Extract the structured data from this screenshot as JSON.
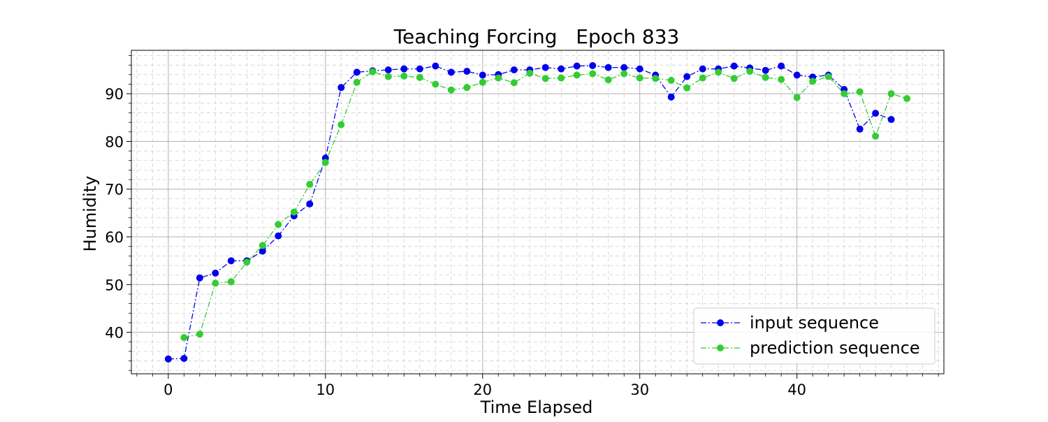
{
  "chart_data": {
    "type": "line",
    "title": "Teaching Forcing   Epoch 833",
    "xlabel": "Time Elapsed",
    "ylabel": "Humidity",
    "xlim": [
      -2.35,
      49.35
    ],
    "ylim": [
      31.3,
      99.1
    ],
    "xticks": [
      0,
      10,
      20,
      30,
      40
    ],
    "yticks": [
      40,
      50,
      60,
      70,
      80,
      90
    ],
    "x_minor_step": 1,
    "y_minor_step": 2,
    "grid": {
      "major": true,
      "minor": true,
      "minor_style": "dashed"
    },
    "legend_position": "lower-right",
    "series": [
      {
        "name": "input sequence",
        "color": "#0000ee",
        "line_style": "dash-dot",
        "marker": "circle",
        "x": [
          0,
          1,
          2,
          3,
          4,
          5,
          6,
          7,
          8,
          9,
          10,
          11,
          12,
          13,
          14,
          15,
          16,
          17,
          18,
          19,
          20,
          21,
          22,
          23,
          24,
          25,
          26,
          27,
          28,
          29,
          30,
          31,
          32,
          33,
          34,
          35,
          36,
          37,
          38,
          39,
          40,
          41,
          42,
          43,
          44,
          45,
          46
        ],
        "y": [
          34.4,
          34.5,
          51.4,
          52.4,
          55.0,
          55.0,
          57.0,
          60.2,
          64.4,
          66.9,
          76.5,
          91.3,
          94.5,
          94.8,
          95.0,
          95.2,
          95.2,
          95.8,
          94.5,
          94.7,
          93.9,
          94.0,
          95.0,
          95.0,
          95.5,
          95.2,
          95.8,
          95.9,
          95.5,
          95.5,
          95.2,
          93.9,
          89.3,
          93.6,
          95.2,
          95.2,
          95.8,
          95.4,
          94.9,
          95.8,
          93.9,
          93.5,
          93.9,
          90.9,
          82.6,
          85.9,
          84.6
        ]
      },
      {
        "name": "prediction sequence",
        "color": "#33cc33",
        "line_style": "dash-dot",
        "marker": "circle",
        "x": [
          1,
          2,
          3,
          4,
          5,
          6,
          7,
          8,
          9,
          10,
          11,
          12,
          13,
          14,
          15,
          16,
          17,
          18,
          19,
          20,
          21,
          22,
          23,
          24,
          25,
          26,
          27,
          28,
          29,
          30,
          31,
          32,
          33,
          34,
          35,
          36,
          37,
          38,
          39,
          40,
          41,
          42,
          43,
          44,
          45,
          46,
          47
        ],
        "y": [
          38.9,
          39.6,
          50.3,
          50.6,
          54.7,
          58.2,
          62.6,
          65.2,
          71.0,
          75.6,
          83.5,
          92.4,
          94.6,
          93.6,
          93.7,
          93.4,
          92.0,
          90.8,
          91.3,
          92.4,
          93.3,
          92.3,
          94.3,
          93.2,
          93.3,
          93.9,
          94.2,
          92.9,
          94.2,
          93.3,
          93.2,
          92.8,
          91.2,
          93.3,
          94.5,
          93.2,
          94.7,
          93.4,
          93.0,
          89.2,
          92.6,
          93.6,
          90.0,
          90.4,
          81.1,
          90.0,
          89.0
        ]
      }
    ]
  }
}
